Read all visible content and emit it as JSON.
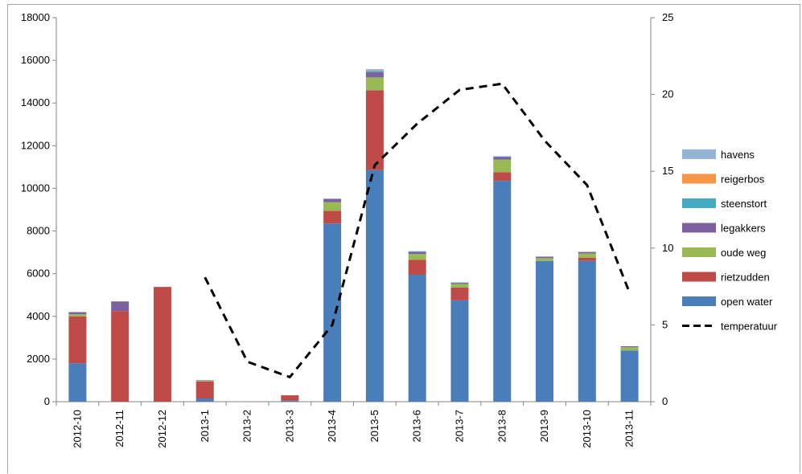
{
  "chart_data": {
    "type": "bar",
    "stacked": true,
    "categories": [
      "2012-10",
      "2012-11",
      "2012-12",
      "2013-1",
      "2013-2",
      "2013-3",
      "2013-4",
      "2013-5",
      "2013-6",
      "2013-7",
      "2013-8",
      "2013-9",
      "2013-10",
      "2013-11"
    ],
    "series": [
      {
        "name": "open water",
        "color": "#4a7ebb",
        "values": [
          1800,
          0,
          0,
          150,
          0,
          50,
          8350,
          10850,
          5950,
          4750,
          10350,
          6600,
          6600,
          2400
        ]
      },
      {
        "name": "rietzudden",
        "color": "#be4b48",
        "values": [
          2200,
          4250,
          5380,
          800,
          0,
          250,
          600,
          3750,
          700,
          600,
          400,
          0,
          150,
          0
        ]
      },
      {
        "name": "oude weg",
        "color": "#98b954",
        "values": [
          100,
          0,
          0,
          40,
          0,
          0,
          400,
          600,
          270,
          170,
          600,
          130,
          200,
          150
        ]
      },
      {
        "name": "legakkers",
        "color": "#7d60a0",
        "values": [
          100,
          450,
          0,
          20,
          0,
          0,
          150,
          250,
          100,
          50,
          120,
          70,
          70,
          50
        ]
      },
      {
        "name": "steenstort",
        "color": "#46aac5",
        "values": [
          0,
          0,
          0,
          0,
          0,
          0,
          0,
          60,
          20,
          20,
          20,
          0,
          0,
          0
        ]
      },
      {
        "name": "reigerbos",
        "color": "#f79646",
        "values": [
          0,
          0,
          0,
          0,
          0,
          0,
          0,
          20,
          0,
          0,
          0,
          0,
          0,
          0
        ]
      },
      {
        "name": "havens",
        "color": "#95b3d7",
        "values": [
          0,
          0,
          0,
          0,
          0,
          0,
          30,
          60,
          20,
          0,
          20,
          0,
          0,
          0
        ]
      }
    ],
    "line": {
      "name": "temperatuur",
      "color": "#000000",
      "axis": "right",
      "values": [
        null,
        null,
        null,
        8.1,
        2.6,
        1.6,
        5.0,
        15.4,
        18.1,
        20.3,
        20.7,
        17.0,
        14.1,
        7.1
      ]
    },
    "ylim_left": [
      0,
      18000
    ],
    "yticks_left": [
      0,
      2000,
      4000,
      6000,
      8000,
      10000,
      12000,
      14000,
      16000,
      18000
    ],
    "ylim_right": [
      0,
      25
    ],
    "yticks_right": [
      0,
      5,
      10,
      15,
      20,
      25
    ],
    "legend_order": [
      "havens",
      "reigerbos",
      "steenstort",
      "legakkers",
      "oude weg",
      "rietzudden",
      "open water",
      "temperatuur"
    ],
    "legend_position": "right",
    "grid": false,
    "title": "",
    "xlabel": "",
    "ylabel": ""
  }
}
